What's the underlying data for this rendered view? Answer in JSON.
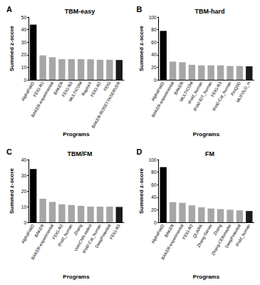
{
  "chart_data": [
    {
      "type": "bar",
      "annotation": "A",
      "title": "TBM-easy",
      "x_label": "Programs",
      "y_label": "Summed z-score",
      "categories": [
        "AlphaFold2",
        "FEIG-R1",
        "BAKER-experimental",
        "BAKER",
        "FEIG-R3",
        "MULTICOM",
        "RaptorX",
        "FEIG-R2",
        "FEIG",
        "BAKER-ROSETTASERVER"
      ],
      "values": [
        44,
        19.5,
        18,
        16.5,
        16.5,
        16.5,
        16.3,
        16,
        16,
        15.8
      ],
      "colors": [
        "#000000",
        "#a6a6a6",
        "#a6a6a6",
        "#a6a6a6",
        "#a6a6a6",
        "#a6a6a6",
        "#a6a6a6",
        "#a6a6a6",
        "#a6a6a6",
        "#1a1a1a"
      ],
      "ylim": [
        0,
        50
      ],
      "yticks": [
        0,
        10,
        20,
        30,
        40,
        50
      ],
      "grid": false
    },
    {
      "type": "bar",
      "annotation": "B",
      "title": "TBM-hard",
      "x_label": "Programs",
      "y_label": "Summed z-score",
      "categories": [
        "AlphaFold2",
        "BAKER-experimental",
        "BAKER",
        "MULTICOM",
        "tFold_human",
        "tFold-IDT_human",
        "FEIG-R3",
        "tFold-Cat_human",
        "ProQ3D",
        "MUFOLD_H"
      ],
      "values": [
        78,
        29,
        28,
        24,
        23,
        23,
        23,
        22,
        22,
        21.5
      ],
      "colors": [
        "#000000",
        "#a6a6a6",
        "#a6a6a6",
        "#a6a6a6",
        "#a6a6a6",
        "#a6a6a6",
        "#a6a6a6",
        "#a6a6a6",
        "#a6a6a6",
        "#1a1a1a"
      ],
      "ylim": [
        0,
        100
      ],
      "yticks": [
        0,
        20,
        40,
        60,
        80,
        100
      ],
      "grid": false
    },
    {
      "type": "bar",
      "annotation": "C",
      "title": "TBM/FM",
      "x_label": "Programs",
      "y_label": "Summed z-score",
      "categories": [
        "AlphaFold2",
        "BAKER",
        "BAKER-experimental",
        "FEIG-R2",
        "tFold_human",
        "Zhang",
        "VoroCNN-select",
        "tFold-Cat_human",
        "DeepPotential",
        "FEIG-R3"
      ],
      "values": [
        34,
        15,
        13,
        11.5,
        11,
        10.5,
        10,
        10,
        10,
        9.8
      ],
      "colors": [
        "#000000",
        "#a6a6a6",
        "#a6a6a6",
        "#a6a6a6",
        "#a6a6a6",
        "#a6a6a6",
        "#a6a6a6",
        "#a6a6a6",
        "#a6a6a6",
        "#1a1a1a"
      ],
      "ylim": [
        0,
        40
      ],
      "yticks": [
        0,
        10,
        20,
        30,
        40
      ],
      "grid": false
    },
    {
      "type": "bar",
      "annotation": "D",
      "title": "FM",
      "x_label": "Programs",
      "y_label": "Summed z-score",
      "categories": [
        "AlphaFold2",
        "BAKER",
        "BAKER-experimental",
        "FEIG-R2",
        "QUARK",
        "Zhang-Server",
        "Zhang",
        "Zhang-CEthreader",
        "DeepPotential",
        "tFold_human"
      ],
      "values": [
        88,
        32,
        31,
        27,
        24,
        22,
        21,
        20,
        19,
        18
      ],
      "colors": [
        "#000000",
        "#a6a6a6",
        "#a6a6a6",
        "#a6a6a6",
        "#a6a6a6",
        "#a6a6a6",
        "#a6a6a6",
        "#a6a6a6",
        "#a6a6a6",
        "#1a1a1a"
      ],
      "ylim": [
        0,
        100
      ],
      "yticks": [
        0,
        20,
        40,
        60,
        80,
        100
      ],
      "grid": false
    }
  ]
}
